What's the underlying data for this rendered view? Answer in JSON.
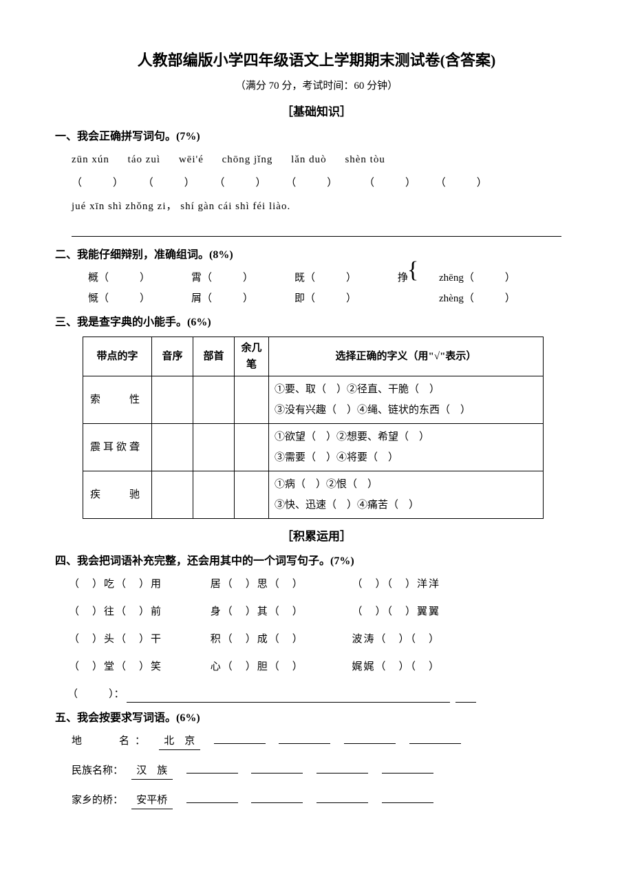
{
  "title": "人教部编版小学四年级语文上学期期末测试卷(含答案)",
  "subtitle": "（满分 70 分，考试时间：60 分钟）",
  "section1_header": "［基础知识］",
  "q1": {
    "title": "一、我会正确拼写词句。(7%)",
    "pinyin": [
      "zūn xún",
      "táo zuì",
      "wēi'é",
      "chōng jǐng",
      "lǎn duò",
      "shèn tòu"
    ],
    "sentence": "jué xīn shì zhǒng zi， shí gàn cái shì féi liào."
  },
  "q2": {
    "title": "二、我能仔细辩别，准确组词。(8%)",
    "pairs": [
      {
        "a": "概（",
        "b": "慨（"
      },
      {
        "a": "霄（",
        "b": "屑（"
      },
      {
        "a": "既（",
        "b": "即（"
      }
    ],
    "zheng_char": "挣",
    "zheng": [
      {
        "py": "zhēng（",
        "close": "）"
      },
      {
        "py": "zhèng（",
        "close": "）"
      }
    ],
    "paren_close": "）"
  },
  "q3": {
    "title": "三、我是查字典的小能手。(6%)",
    "headers": [
      "带点的字",
      "音序",
      "部首",
      "余几笔",
      "选择正确的字义（用\"√\"表示）"
    ],
    "rows": [
      {
        "word": "索　　性",
        "meaning": "①要、取（　）②径直、干脆（　）\n③没有兴趣（　）④绳、链状的东西（　）"
      },
      {
        "word": "震耳欲聋",
        "meaning": "①欲望（　）②想要、希望（　）\n③需要（　）④将要（　）"
      },
      {
        "word": "疾　　驰",
        "meaning": "①病（　）②恨（　）\n③快、迅速（　）④痛苦（　）"
      }
    ]
  },
  "section2_header": "［积累运用］",
  "q4": {
    "title": "四、我会把词语补充完整，还会用其中的一个词写句子。(7%)",
    "idioms": [
      [
        "（　）吃（　）用",
        "居（　）思（　）",
        "（　）（　）洋洋"
      ],
      [
        "（　）往（　）前",
        "身（　）其（　）",
        "（　）（　）翼翼"
      ],
      [
        "（　）头（　）干",
        "积（　）成（　）",
        "波涛（　）（　）"
      ],
      [
        "（　）堂（　）笑",
        "心（　）胆（　）",
        "娓娓（　）（　）"
      ]
    ],
    "sentence_prefix": "（　　　）："
  },
  "q5": {
    "title": "五、我会按要求写词语。(6%)",
    "rows": [
      {
        "label": "地　　名：",
        "example": "北　京"
      },
      {
        "label": "民族名称：",
        "example": "汉　族"
      },
      {
        "label": "家乡的桥：",
        "example": "安平桥"
      }
    ]
  },
  "colors": {
    "text": "#000000",
    "background": "#ffffff",
    "border": "#000000"
  }
}
